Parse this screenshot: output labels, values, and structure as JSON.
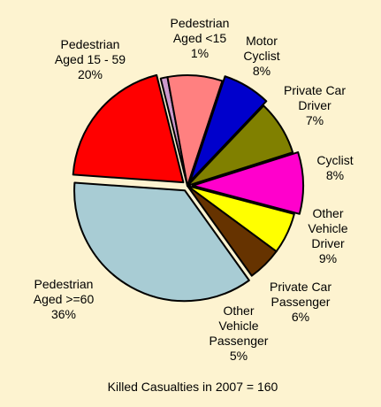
{
  "chart_data": {
    "type": "pie",
    "title": "",
    "caption": "Killed Casualties in 2007 = 160",
    "slices": [
      {
        "label": [
          "Pedestrian",
          "Aged <15",
          "1%"
        ],
        "value": 1,
        "color": "#cc99cc",
        "exploded": false
      },
      {
        "label": [
          "Motor",
          "Cyclist",
          "8%"
        ],
        "value": 8,
        "color": "#ff8080",
        "exploded": false
      },
      {
        "label": [
          "Private Car",
          "Driver",
          "7%"
        ],
        "value": 7,
        "color": "#0000cc",
        "exploded": true
      },
      {
        "label": [
          "Cyclist",
          "8%"
        ],
        "value": 8,
        "color": "#808000",
        "exploded": false
      },
      {
        "label": [
          "Other",
          "Vehicle",
          "Driver",
          "9%"
        ],
        "value": 9,
        "color": "#ff00cc",
        "exploded": true
      },
      {
        "label": [
          "Private Car",
          "Passenger",
          "6%"
        ],
        "value": 6,
        "color": "#ffff00",
        "exploded": false
      },
      {
        "label": [
          "Other",
          "Vehicle",
          "Passenger",
          "5%"
        ],
        "value": 5,
        "color": "#663300",
        "exploded": false
      },
      {
        "label": [
          "Pedestrian",
          "Aged >=60",
          "36%"
        ],
        "value": 36,
        "color": "#a8ccd4",
        "exploded": true
      },
      {
        "label": [
          "Pedestrian",
          "Aged 15 - 59",
          "20%"
        ],
        "value": 20,
        "color": "#ff0000",
        "exploded": true
      }
    ]
  }
}
